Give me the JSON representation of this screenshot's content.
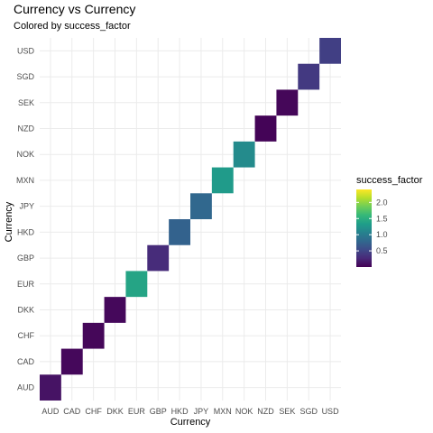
{
  "chart_data": {
    "type": "heatmap",
    "title": "Currency vs Currency",
    "subtitle": "Colored by success_factor",
    "xlabel": "Currency",
    "ylabel": "Currency",
    "categories": [
      "AUD",
      "CAD",
      "CHF",
      "DKK",
      "EUR",
      "GBP",
      "HKD",
      "JPY",
      "MXN",
      "NOK",
      "NZD",
      "SEK",
      "SGD",
      "USD"
    ],
    "cells": [
      {
        "x": "AUD",
        "y": "AUD",
        "value": 0.12
      },
      {
        "x": "CAD",
        "y": "CAD",
        "value": 0.05
      },
      {
        "x": "CHF",
        "y": "CHF",
        "value": 0.04
      },
      {
        "x": "DKK",
        "y": "DKK",
        "value": 0.05
      },
      {
        "x": "EUR",
        "y": "EUR",
        "value": 1.4
      },
      {
        "x": "GBP",
        "y": "GBP",
        "value": 0.3
      },
      {
        "x": "HKD",
        "y": "HKD",
        "value": 0.75
      },
      {
        "x": "JPY",
        "y": "JPY",
        "value": 0.8
      },
      {
        "x": "MXN",
        "y": "MXN",
        "value": 1.3
      },
      {
        "x": "NOK",
        "y": "NOK",
        "value": 1.15
      },
      {
        "x": "NZD",
        "y": "NZD",
        "value": 0.02
      },
      {
        "x": "SEK",
        "y": "SEK",
        "value": 0.04
      },
      {
        "x": "SGD",
        "y": "SGD",
        "value": 0.4
      },
      {
        "x": "USD",
        "y": "USD",
        "value": 0.45
      }
    ],
    "legend": {
      "title": "success_factor",
      "min": 0.0,
      "max": 2.4,
      "ticks": [
        {
          "value": 0.5,
          "label": "0.5"
        },
        {
          "value": 1.0,
          "label": "1.0"
        },
        {
          "value": 1.5,
          "label": "1.5"
        },
        {
          "value": 2.0,
          "label": "2.0"
        }
      ],
      "placement": "right"
    },
    "palette": "viridis",
    "grid": true,
    "background": "#ffffff",
    "gridline_color": "#ebebeb"
  }
}
